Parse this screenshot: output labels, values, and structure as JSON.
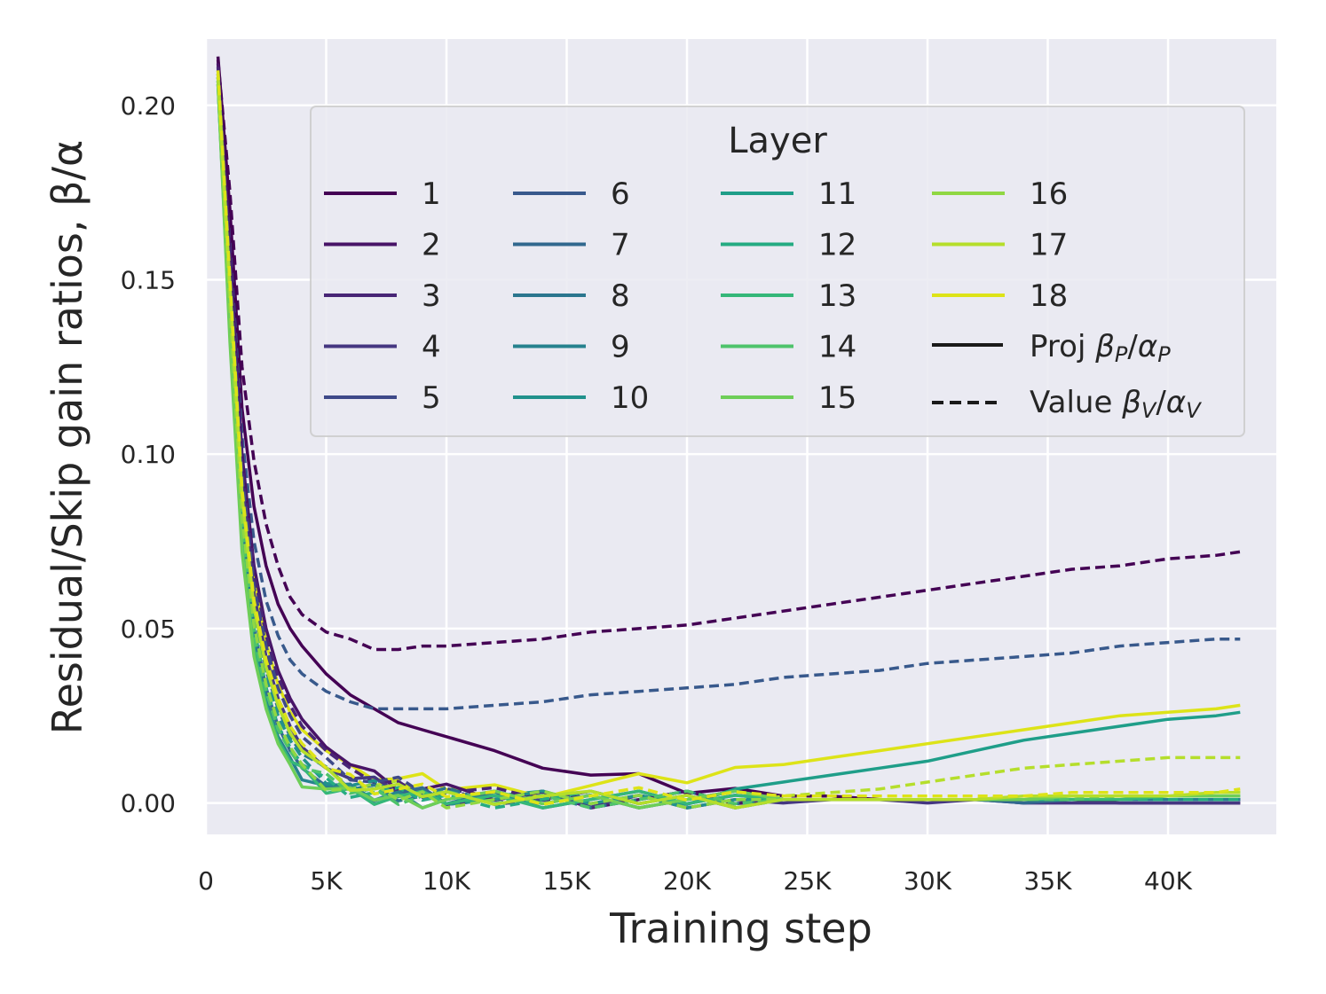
{
  "chart_data": {
    "type": "line",
    "title": "",
    "xlabel": "Training step",
    "ylabel": "Residual/Skip gain ratios, β/α",
    "xlim": [
      0,
      44500
    ],
    "ylim": [
      -0.009,
      0.219
    ],
    "x_ticks": [
      0,
      5000,
      10000,
      15000,
      20000,
      25000,
      30000,
      35000,
      40000
    ],
    "x_tick_labels": [
      "0",
      "5K",
      "10K",
      "15K",
      "20K",
      "25K",
      "30K",
      "35K",
      "40K"
    ],
    "y_ticks": [
      0.0,
      0.05,
      0.1,
      0.15,
      0.2
    ],
    "y_tick_labels": [
      "0.00",
      "0.05",
      "0.10",
      "0.15",
      "0.20"
    ],
    "grid": true,
    "legend": {
      "title": "Layer",
      "placement": "upper-right",
      "layers": [
        "1",
        "2",
        "3",
        "4",
        "5",
        "6",
        "7",
        "8",
        "9",
        "10",
        "11",
        "12",
        "13",
        "14",
        "15",
        "16",
        "17",
        "18"
      ],
      "colors": [
        "#440154",
        "#481467",
        "#482576",
        "#453781",
        "#3e4989",
        "#38598c",
        "#31688e",
        "#2b768e",
        "#26828e",
        "#21918c",
        "#1f9e89",
        "#25ab82",
        "#35b779",
        "#4ec36b",
        "#6ece58",
        "#90d743",
        "#b5de2b",
        "#dde318"
      ],
      "style_proj_prefix": "Proj ",
      "style_value_prefix": "Value ",
      "proj_symbol": "β",
      "proj_sub": "P",
      "proj_denominator": "α",
      "value_symbol": "β",
      "value_sub": "V",
      "value_denominator": "α"
    },
    "x": [
      500,
      1000,
      1500,
      2000,
      2500,
      3000,
      3500,
      4000,
      5000,
      6000,
      7000,
      8000,
      9000,
      10000,
      12000,
      14000,
      16000,
      18000,
      20000,
      22000,
      24000,
      26000,
      28000,
      30000,
      32000,
      34000,
      36000,
      38000,
      40000,
      42000,
      43000
    ],
    "series": [
      {
        "name": "Layer 1 proj",
        "layer": 1,
        "style": "solid",
        "values": [
          0.214,
          0.17,
          0.113,
          0.085,
          0.068,
          0.057,
          0.05,
          0.045,
          0.037,
          0.031,
          0.027,
          0.023,
          0.021,
          0.019,
          0.015,
          0.01,
          0.008,
          0.006,
          0.004,
          0.003,
          0.002,
          0.002,
          0.001,
          0.001,
          0.001,
          0.001,
          0.001,
          0.0,
          0.0,
          0.0,
          0.0
        ]
      },
      {
        "name": "Layer 1 value",
        "layer": 1,
        "style": "dashed",
        "values": [
          0.213,
          0.175,
          0.125,
          0.098,
          0.08,
          0.068,
          0.059,
          0.054,
          0.049,
          0.047,
          0.044,
          0.044,
          0.045,
          0.045,
          0.046,
          0.047,
          0.049,
          0.05,
          0.051,
          0.053,
          0.055,
          0.057,
          0.059,
          0.061,
          0.063,
          0.065,
          0.067,
          0.068,
          0.07,
          0.071,
          0.072
        ]
      },
      {
        "name": "Layer 6 value",
        "layer": 6,
        "style": "dashed",
        "values": [
          0.208,
          0.16,
          0.105,
          0.075,
          0.058,
          0.048,
          0.041,
          0.037,
          0.032,
          0.029,
          0.027,
          0.027,
          0.027,
          0.027,
          0.028,
          0.029,
          0.031,
          0.032,
          0.033,
          0.034,
          0.036,
          0.037,
          0.038,
          0.04,
          0.041,
          0.042,
          0.043,
          0.045,
          0.046,
          0.047,
          0.047
        ]
      },
      {
        "name": "Layer 11 proj",
        "layer": 11,
        "style": "solid",
        "values": [
          0.208,
          0.15,
          0.09,
          0.058,
          0.04,
          0.028,
          0.02,
          0.015,
          0.01,
          0.007,
          0.005,
          0.004,
          0.003,
          0.002,
          0.002,
          0.001,
          0.001,
          0.001,
          0.002,
          0.004,
          0.006,
          0.008,
          0.01,
          0.012,
          0.015,
          0.018,
          0.02,
          0.022,
          0.024,
          0.025,
          0.026
        ]
      },
      {
        "name": "Layer 17 value",
        "layer": 17,
        "style": "dashed",
        "values": [
          0.208,
          0.15,
          0.09,
          0.058,
          0.04,
          0.028,
          0.02,
          0.015,
          0.01,
          0.007,
          0.005,
          0.004,
          0.003,
          0.002,
          0.002,
          0.001,
          0.001,
          0.001,
          0.001,
          0.002,
          0.002,
          0.003,
          0.004,
          0.006,
          0.008,
          0.01,
          0.011,
          0.012,
          0.013,
          0.013,
          0.013
        ]
      },
      {
        "name": "Layer 18 proj",
        "layer": 18,
        "style": "solid",
        "values": [
          0.21,
          0.155,
          0.096,
          0.064,
          0.046,
          0.034,
          0.026,
          0.021,
          0.015,
          0.011,
          0.009,
          0.007,
          0.006,
          0.005,
          0.004,
          0.004,
          0.005,
          0.006,
          0.007,
          0.009,
          0.011,
          0.013,
          0.015,
          0.017,
          0.019,
          0.021,
          0.023,
          0.025,
          0.026,
          0.027,
          0.028
        ]
      },
      {
        "name": "Layer 2 proj",
        "layer": 2,
        "style": "solid",
        "values": [
          0.212,
          0.158,
          0.1,
          0.068,
          0.05,
          0.038,
          0.03,
          0.024,
          0.016,
          0.011,
          0.008,
          0.006,
          0.004,
          0.003,
          0.002,
          0.002,
          0.001,
          0.001,
          0.001,
          0.001,
          0.001,
          0.001,
          0.001,
          0.001,
          0.001,
          0.001,
          0.001,
          0.001,
          0.001,
          0.001,
          0.001
        ]
      },
      {
        "name": "Layer 3 value",
        "layer": 3,
        "style": "dashed",
        "values": [
          0.211,
          0.155,
          0.097,
          0.066,
          0.048,
          0.036,
          0.028,
          0.022,
          0.015,
          0.01,
          0.007,
          0.005,
          0.004,
          0.003,
          0.002,
          0.002,
          0.001,
          0.001,
          0.001,
          0.001,
          0.001,
          0.001,
          0.001,
          0.001,
          0.001,
          0.001,
          0.001,
          0.001,
          0.001,
          0.001,
          0.001
        ]
      },
      {
        "name": "Layer 4 proj",
        "layer": 4,
        "style": "solid",
        "values": [
          0.209,
          0.15,
          0.092,
          0.06,
          0.042,
          0.03,
          0.022,
          0.016,
          0.01,
          0.007,
          0.005,
          0.004,
          0.003,
          0.002,
          0.001,
          0.001,
          0.0,
          0.001,
          0.001,
          0.001,
          0.0,
          0.001,
          0.001,
          0.0,
          0.001,
          0.0,
          0.0,
          0.0,
          0.0,
          0.0,
          0.0
        ]
      },
      {
        "name": "Layer 5 value",
        "layer": 5,
        "style": "dashed",
        "values": [
          0.21,
          0.152,
          0.094,
          0.062,
          0.045,
          0.033,
          0.025,
          0.019,
          0.013,
          0.009,
          0.006,
          0.005,
          0.004,
          0.003,
          0.002,
          0.001,
          0.001,
          0.001,
          0.001,
          0.001,
          0.001,
          0.001,
          0.001,
          0.001,
          0.001,
          0.001,
          0.001,
          0.001,
          0.001,
          0.001,
          0.001
        ]
      },
      {
        "name": "Layer 7 proj",
        "layer": 7,
        "style": "solid",
        "values": [
          0.207,
          0.14,
          0.08,
          0.05,
          0.033,
          0.022,
          0.015,
          0.01,
          0.006,
          0.004,
          0.003,
          0.003,
          0.002,
          0.001,
          0.002,
          0.001,
          0.001,
          0.001,
          0.001,
          0.001,
          0.001,
          0.001,
          0.001,
          0.001,
          0.001,
          0.0,
          0.001,
          0.001,
          0.001,
          0.001,
          0.001
        ]
      },
      {
        "name": "Layer 8 value",
        "layer": 8,
        "style": "dashed",
        "values": [
          0.209,
          0.146,
          0.086,
          0.055,
          0.038,
          0.027,
          0.019,
          0.014,
          0.008,
          0.005,
          0.004,
          0.003,
          0.002,
          0.002,
          0.001,
          0.001,
          0.001,
          0.001,
          0.001,
          0.001,
          0.001,
          0.001,
          0.001,
          0.001,
          0.001,
          0.001,
          0.001,
          0.001,
          0.001,
          0.001,
          0.001
        ]
      },
      {
        "name": "Layer 9 proj",
        "layer": 9,
        "style": "solid",
        "values": [
          0.206,
          0.136,
          0.076,
          0.046,
          0.03,
          0.019,
          0.013,
          0.009,
          0.005,
          0.003,
          0.002,
          0.002,
          0.001,
          0.001,
          0.001,
          0.001,
          0.001,
          0.001,
          0.001,
          0.001,
          0.001,
          0.001,
          0.001,
          0.001,
          0.001,
          0.001,
          0.001,
          0.001,
          0.001,
          0.001,
          0.001
        ]
      },
      {
        "name": "Layer 10 value",
        "layer": 10,
        "style": "dashed",
        "values": [
          0.208,
          0.144,
          0.084,
          0.053,
          0.036,
          0.025,
          0.018,
          0.013,
          0.008,
          0.005,
          0.004,
          0.003,
          0.002,
          0.002,
          0.001,
          0.001,
          0.001,
          0.001,
          0.001,
          0.001,
          0.001,
          0.001,
          0.001,
          0.001,
          0.001,
          0.001,
          0.001,
          0.001,
          0.001,
          0.001,
          0.001
        ]
      },
      {
        "name": "Layer 12 value",
        "layer": 12,
        "style": "dashed",
        "values": [
          0.207,
          0.14,
          0.08,
          0.05,
          0.033,
          0.022,
          0.016,
          0.011,
          0.006,
          0.004,
          0.003,
          0.002,
          0.002,
          0.001,
          0.001,
          0.001,
          0.001,
          0.001,
          0.001,
          0.001,
          0.001,
          0.001,
          0.001,
          0.001,
          0.001,
          0.001,
          0.001,
          0.001,
          0.001,
          0.001,
          0.001
        ]
      },
      {
        "name": "Layer 13 proj",
        "layer": 13,
        "style": "solid",
        "values": [
          0.206,
          0.134,
          0.074,
          0.044,
          0.028,
          0.018,
          0.012,
          0.008,
          0.004,
          0.003,
          0.002,
          0.002,
          0.001,
          0.001,
          0.001,
          0.001,
          0.001,
          0.001,
          0.001,
          0.001,
          0.001,
          0.001,
          0.001,
          0.001,
          0.001,
          0.001,
          0.001,
          0.001,
          0.002,
          0.002,
          0.002
        ]
      },
      {
        "name": "Layer 14 value",
        "layer": 14,
        "style": "dashed",
        "values": [
          0.207,
          0.138,
          0.078,
          0.048,
          0.032,
          0.021,
          0.015,
          0.01,
          0.006,
          0.004,
          0.003,
          0.002,
          0.002,
          0.001,
          0.001,
          0.001,
          0.001,
          0.001,
          0.001,
          0.001,
          0.001,
          0.001,
          0.001,
          0.001,
          0.001,
          0.001,
          0.001,
          0.002,
          0.002,
          0.002,
          0.002
        ]
      },
      {
        "name": "Layer 15 proj",
        "layer": 15,
        "style": "solid",
        "values": [
          0.206,
          0.132,
          0.072,
          0.042,
          0.027,
          0.017,
          0.011,
          0.007,
          0.004,
          0.002,
          0.002,
          0.001,
          0.001,
          0.001,
          0.001,
          0.001,
          0.001,
          0.001,
          0.001,
          0.001,
          0.001,
          0.001,
          0.001,
          0.001,
          0.001,
          0.001,
          0.002,
          0.002,
          0.002,
          0.002,
          0.002
        ]
      },
      {
        "name": "Layer 16 value",
        "layer": 16,
        "style": "dashed",
        "values": [
          0.208,
          0.142,
          0.082,
          0.051,
          0.034,
          0.023,
          0.016,
          0.011,
          0.006,
          0.004,
          0.003,
          0.002,
          0.002,
          0.001,
          0.001,
          0.001,
          0.001,
          0.001,
          0.001,
          0.001,
          0.001,
          0.001,
          0.001,
          0.001,
          0.001,
          0.002,
          0.002,
          0.002,
          0.002,
          0.003,
          0.003
        ]
      },
      {
        "name": "Layer 17 proj",
        "layer": 17,
        "style": "solid",
        "values": [
          0.209,
          0.148,
          0.088,
          0.056,
          0.039,
          0.028,
          0.02,
          0.015,
          0.009,
          0.006,
          0.004,
          0.003,
          0.003,
          0.002,
          0.002,
          0.002,
          0.001,
          0.001,
          0.001,
          0.001,
          0.001,
          0.001,
          0.001,
          0.001,
          0.001,
          0.002,
          0.002,
          0.002,
          0.002,
          0.003,
          0.003
        ]
      },
      {
        "name": "Layer 18 value",
        "layer": 18,
        "style": "dashed",
        "values": [
          0.21,
          0.15,
          0.09,
          0.058,
          0.041,
          0.03,
          0.022,
          0.017,
          0.01,
          0.007,
          0.005,
          0.004,
          0.003,
          0.003,
          0.002,
          0.002,
          0.002,
          0.002,
          0.002,
          0.002,
          0.002,
          0.002,
          0.002,
          0.002,
          0.002,
          0.002,
          0.003,
          0.003,
          0.003,
          0.003,
          0.004
        ]
      }
    ]
  }
}
